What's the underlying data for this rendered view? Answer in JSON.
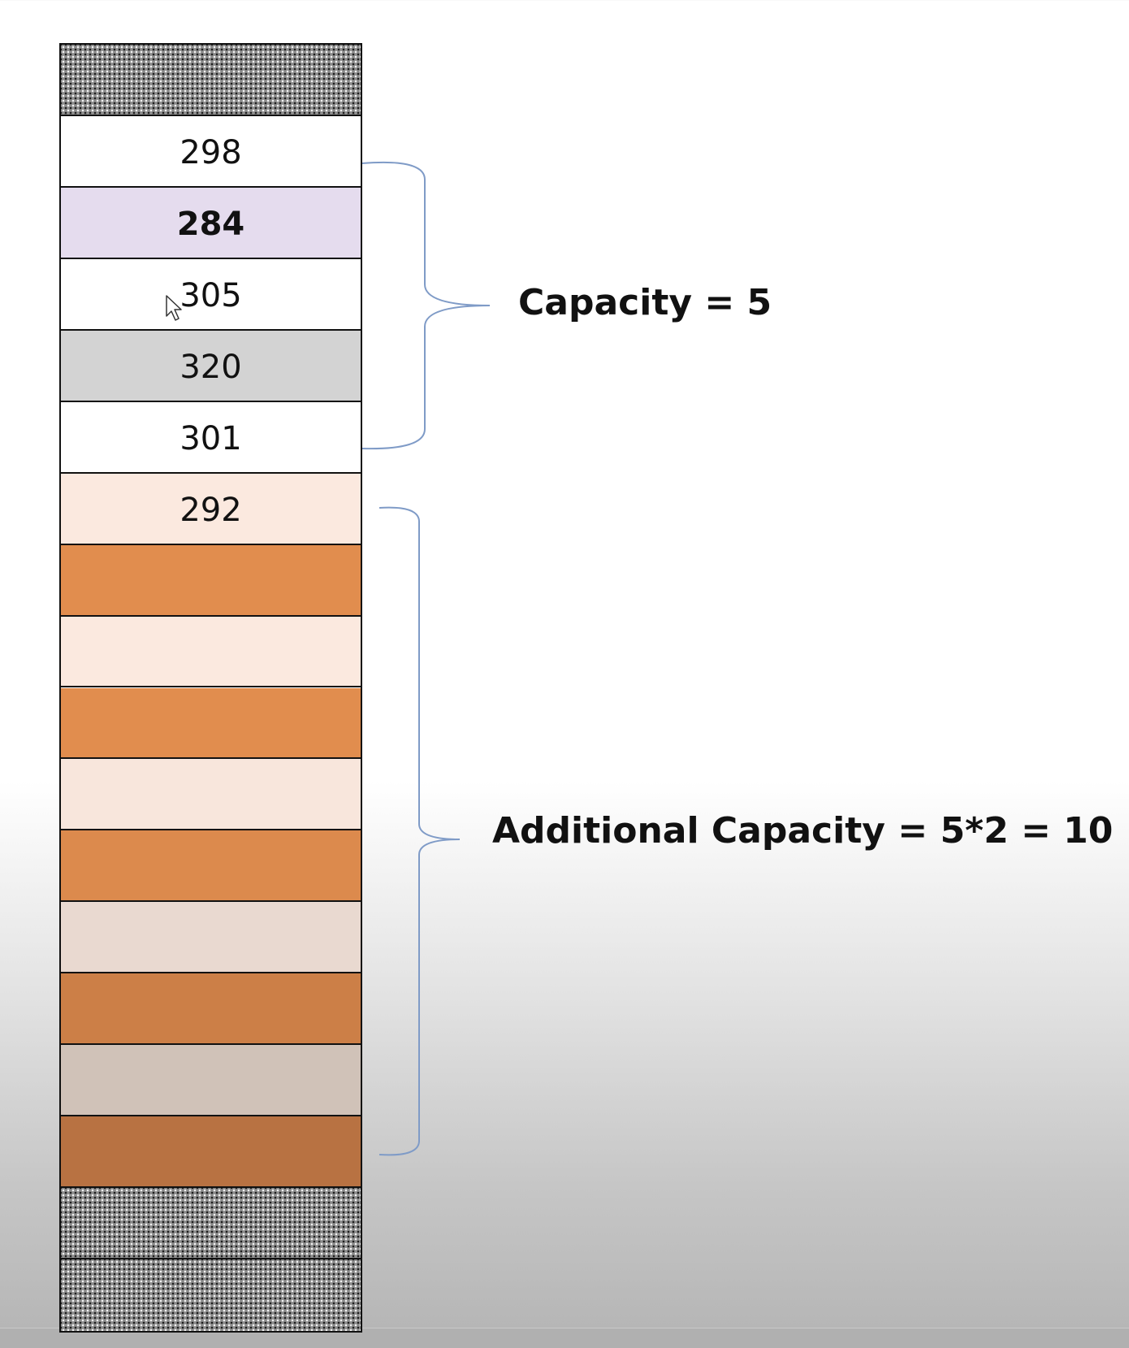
{
  "cells": [
    {
      "label": "",
      "fill": "hatched",
      "bold": false
    },
    {
      "label": "298",
      "fill": "#ffffff",
      "bold": false
    },
    {
      "label": "284",
      "fill": "#e5dcee",
      "bold": true
    },
    {
      "label": "305",
      "fill": "#ffffff",
      "bold": false
    },
    {
      "label": "320",
      "fill": "#d3d3d3",
      "bold": false
    },
    {
      "label": "301",
      "fill": "#ffffff",
      "bold": false
    },
    {
      "label": "292",
      "fill": "#fbe9df",
      "bold": false
    },
    {
      "label": "",
      "fill": "#e18d4e",
      "bold": false
    },
    {
      "label": "",
      "fill": "#fbe9df",
      "bold": false
    },
    {
      "label": "",
      "fill": "#e18d4e",
      "bold": false
    },
    {
      "label": "",
      "fill": "#f8e6dc",
      "bold": false
    },
    {
      "label": "",
      "fill": "#dc8a4d",
      "bold": false
    },
    {
      "label": "",
      "fill": "#e9d9d0",
      "bold": false
    },
    {
      "label": "",
      "fill": "#cc7f47",
      "bold": false
    },
    {
      "label": "",
      "fill": "#d0c2b8",
      "bold": false
    },
    {
      "label": "",
      "fill": "#b87242",
      "bold": false
    },
    {
      "label": "",
      "fill": "hatched",
      "bold": false
    },
    {
      "label": "",
      "fill": "hatched",
      "bold": false
    }
  ],
  "annotations": {
    "capacity": "Capacity = 5",
    "additional_capacity": "Additional Capacity = 5*2 = 10"
  },
  "icons": {
    "cursor": "mouse-pointer-icon",
    "capacity_brace": "curly-brace-icon",
    "additional_brace": "curly-brace-icon"
  },
  "colors": {
    "brace": "#7f9bc7",
    "border": "#111111"
  }
}
